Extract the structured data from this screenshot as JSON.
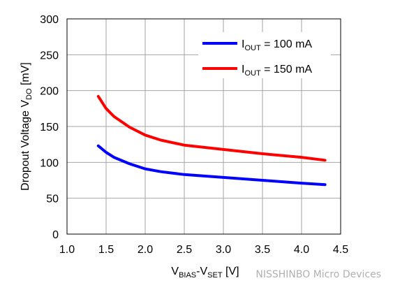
{
  "chart_data": {
    "type": "line",
    "xlabel": {
      "main": "V",
      "sub1": "BIAS",
      "mid": "-V",
      "sub2": "SET",
      "unit": " [V]"
    },
    "ylabel": {
      "main": "Dropout Voltage V",
      "sub": "DO",
      "unit": " [mV]"
    },
    "xlim": [
      1.0,
      4.5
    ],
    "ylim": [
      0,
      300
    ],
    "xticks": [
      "1.0",
      "1.5",
      "2.0",
      "2.5",
      "3.0",
      "3.5",
      "4.0",
      "4.5"
    ],
    "yticks": [
      "0",
      "50",
      "100",
      "150",
      "200",
      "250",
      "300"
    ],
    "grid": true,
    "legend_position": "top-right",
    "series": [
      {
        "name": "100 mA",
        "legend": {
          "prefix": "I",
          "sub": "OUT",
          "suffix": " = 100 mA"
        },
        "color": "#0000ff",
        "x": [
          1.4,
          1.5,
          1.6,
          1.8,
          2.0,
          2.2,
          2.5,
          3.0,
          3.5,
          4.0,
          4.3
        ],
        "y": [
          123,
          114,
          107,
          98,
          91,
          87,
          83,
          79,
          75,
          71,
          69
        ]
      },
      {
        "name": "150 mA",
        "legend": {
          "prefix": "I",
          "sub": "OUT",
          "suffix": " = 150 mA"
        },
        "color": "#ff0000",
        "x": [
          1.4,
          1.5,
          1.6,
          1.8,
          2.0,
          2.2,
          2.5,
          3.0,
          3.5,
          4.0,
          4.3
        ],
        "y": [
          192,
          175,
          164,
          149,
          138,
          131,
          124,
          118,
          112,
          107,
          103
        ]
      }
    ]
  },
  "watermark": {
    "text": "NISSHINBO Micro Devices"
  },
  "colors": {
    "grid": "#a6a6a6",
    "frame": "#000000",
    "background": "#ffffff"
  }
}
